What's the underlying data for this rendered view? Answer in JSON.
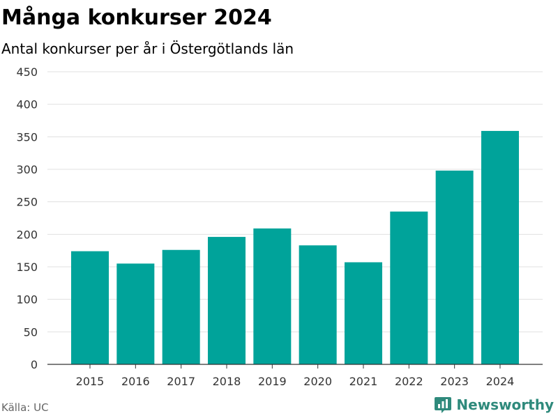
{
  "title": "Många konkurser 2024",
  "subtitle": "Antal konkurser per år i Östergötlands län",
  "source": "Källa: UC",
  "brand": {
    "name": "Newsworthy",
    "icon": "bar-chart-logo-icon"
  },
  "colors": {
    "bar": "#00a39a",
    "grid": "#e0e0e0",
    "axis": "#333333",
    "brand": "#2f8a7c"
  },
  "chart_data": {
    "type": "bar",
    "categories": [
      "2015",
      "2016",
      "2017",
      "2018",
      "2019",
      "2020",
      "2021",
      "2022",
      "2023",
      "2024"
    ],
    "values": [
      174,
      155,
      176,
      196,
      209,
      183,
      157,
      235,
      298,
      359
    ],
    "ylim": [
      0,
      450
    ],
    "yticks": [
      "0",
      "50",
      "100",
      "150",
      "200",
      "250",
      "300",
      "350",
      "400",
      "450"
    ],
    "grid": true,
    "legend": "none"
  }
}
